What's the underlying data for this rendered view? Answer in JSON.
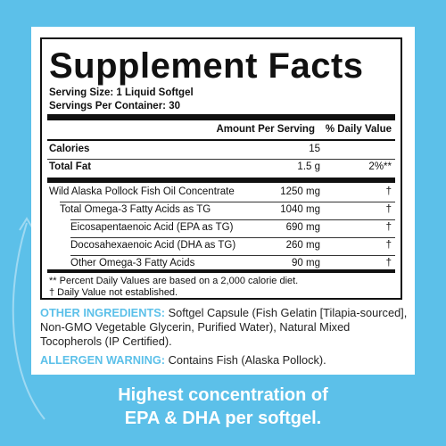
{
  "header": {
    "title": "Supplement Facts",
    "serving_size": "Serving Size: 1 Liquid Softgel",
    "servings_per_container": "Servings Per Container: 30"
  },
  "table": {
    "columns": [
      "Amount Per Serving",
      "% Daily Value"
    ],
    "rows": [
      {
        "name": "Calories",
        "amount": "15"
      },
      {
        "name": "Total Fat",
        "amount": "1.5 g",
        "dv": "2%**"
      },
      {
        "name": "Wild Alaska Pollock Fish Oil Concentrate",
        "amount": "1250 mg",
        "dv": "†"
      },
      {
        "name": "Total Omega-3 Fatty Acids as TG",
        "amount": "1040 mg",
        "dv": "†"
      },
      {
        "name": "Eicosapentaenoic Acid (EPA as TG)",
        "amount": "690 mg",
        "dv": "†"
      },
      {
        "name": "Docosahexaenoic Acid (DHA as TG)",
        "amount": "260 mg",
        "dv": "†"
      },
      {
        "name": "Other Omega-3 Fatty Acids",
        "amount": "90 mg",
        "dv": "†"
      }
    ]
  },
  "footnotes": [
    "** Percent Daily Values are based on a 2,000 calorie diet.",
    "† Daily Value not established."
  ],
  "other_ingredients": {
    "label": "OTHER INGREDIENTS:",
    "text": "Softgel Capsule (Fish Gelatin [Tilapia-sourced], Non-GMO Vegetable Glycerin, Purified Water), Natural Mixed Tocopherols (IP Certified)."
  },
  "allergen_warning": {
    "label": "ALLERGEN WARNING:",
    "text": "Contains Fish (Alaska Pollock)."
  },
  "tagline": [
    "Highest concentration of",
    "EPA & DHA per softgel."
  ]
}
